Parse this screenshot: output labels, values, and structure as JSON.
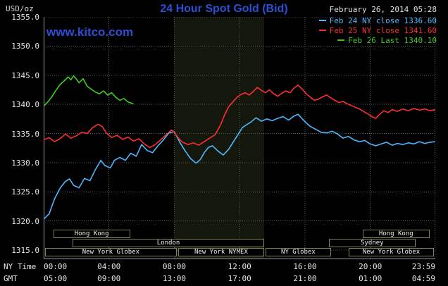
{
  "header": {
    "unit_label": "USD/oz",
    "title": "24 Hour Spot Gold (Bid)",
    "datetime": "February 26, 2014 05:28",
    "watermark": "www.kitco.com"
  },
  "colors": {
    "background": "#000000",
    "title_blue": "#2c4fd4",
    "grid": "#5c5c5c",
    "axis_line": "#9a9a9a",
    "axis_text": "#e4e4e4",
    "session_border": "#82825a",
    "band": "#14170c",
    "cyan": "#4db8ff",
    "red": "#ff2e2e",
    "green": "#3fcc1f"
  },
  "legend": [
    {
      "label": "Feb 24 NY close 1336.60",
      "color_key": "cyan"
    },
    {
      "label": "Feb 25 NY close 1341.60",
      "color_key": "red"
    },
    {
      "label": "Feb 26 Last 1340.10",
      "color_key": "green"
    }
  ],
  "axes": {
    "y_tick_labels": [
      "1355.0",
      "1350.0",
      "1345.0",
      "1340.0",
      "1335.0",
      "1330.0",
      "1325.0",
      "1320.0",
      "1315.0"
    ],
    "x_row1_label": "NY Time",
    "x_row2_label": "GMT",
    "x_ticks": [
      {
        "min": 0,
        "ny": "00:00",
        "gmt": "05:00"
      },
      {
        "min": 240,
        "ny": "04:00",
        "gmt": "09:00"
      },
      {
        "min": 480,
        "ny": "08:00",
        "gmt": "13:00"
      },
      {
        "min": 720,
        "ny": "12:00",
        "gmt": "17:00"
      },
      {
        "min": 960,
        "ny": "16:00",
        "gmt": "21:00"
      },
      {
        "min": 1200,
        "ny": "20:00",
        "gmt": "01:00"
      },
      {
        "min": 1439,
        "ny": "23:59",
        "gmt": "04:59"
      }
    ]
  },
  "sessions": [
    {
      "row": 0,
      "start_min": 35,
      "end_min": 318,
      "label": "Hong Kong"
    },
    {
      "row": 0,
      "start_min": 1172,
      "end_min": 1418,
      "label": "Hong Kong"
    },
    {
      "row": 1,
      "start_min": 106,
      "end_min": 810,
      "label": "London"
    },
    {
      "row": 1,
      "start_min": 1048,
      "end_min": 1366,
      "label": "Sydney"
    },
    {
      "row": 2,
      "start_min": 5,
      "end_min": 489,
      "label": "New York Globex"
    },
    {
      "row": 2,
      "start_min": 494,
      "end_min": 810,
      "label": "New York NYMEX"
    },
    {
      "row": 2,
      "start_min": 815,
      "end_min": 1056,
      "label": "NY Globex"
    },
    {
      "row": 2,
      "start_min": 1121,
      "end_min": 1434,
      "label": "New York Globex"
    }
  ],
  "chart_data": {
    "type": "line",
    "title": "24 Hour Spot Gold (Bid)",
    "ylabel": "USD/oz",
    "x_unit": "minutes_since_00:00_NY_time",
    "xlim": [
      0,
      1439
    ],
    "ylim": [
      1315,
      1355
    ],
    "y_gridline_step": 5,
    "grid": true,
    "legend_position": "top-right",
    "highlight_band_min": [
      480,
      810
    ],
    "series": [
      {
        "name": "Feb 24 NY close 1336.60",
        "color_key": "cyan",
        "points": [
          [
            0,
            1320.3
          ],
          [
            20,
            1321.2
          ],
          [
            40,
            1323.8
          ],
          [
            60,
            1325.6
          ],
          [
            80,
            1326.8
          ],
          [
            95,
            1327.2
          ],
          [
            110,
            1326.1
          ],
          [
            130,
            1325.7
          ],
          [
            150,
            1327.3
          ],
          [
            170,
            1326.9
          ],
          [
            190,
            1328.8
          ],
          [
            210,
            1330.4
          ],
          [
            225,
            1329.5
          ],
          [
            245,
            1329.1
          ],
          [
            260,
            1330.4
          ],
          [
            280,
            1330.9
          ],
          [
            300,
            1330.4
          ],
          [
            320,
            1331.6
          ],
          [
            340,
            1331.1
          ],
          [
            360,
            1333.1
          ],
          [
            380,
            1332.1
          ],
          [
            400,
            1331.7
          ],
          [
            420,
            1332.9
          ],
          [
            440,
            1333.9
          ],
          [
            460,
            1335.1
          ],
          [
            480,
            1335.3
          ],
          [
            500,
            1333.5
          ],
          [
            520,
            1332.0
          ],
          [
            540,
            1330.7
          ],
          [
            560,
            1329.9
          ],
          [
            575,
            1330.5
          ],
          [
            590,
            1331.7
          ],
          [
            605,
            1332.6
          ],
          [
            620,
            1332.9
          ],
          [
            640,
            1332.0
          ],
          [
            660,
            1331.3
          ],
          [
            680,
            1332.3
          ],
          [
            700,
            1333.8
          ],
          [
            715,
            1334.9
          ],
          [
            730,
            1336.0
          ],
          [
            745,
            1336.5
          ],
          [
            760,
            1336.9
          ],
          [
            780,
            1337.7
          ],
          [
            800,
            1337.1
          ],
          [
            820,
            1337.5
          ],
          [
            840,
            1337.2
          ],
          [
            860,
            1337.6
          ],
          [
            880,
            1337.9
          ],
          [
            900,
            1337.3
          ],
          [
            920,
            1338.0
          ],
          [
            935,
            1338.3
          ],
          [
            950,
            1337.5
          ],
          [
            965,
            1336.8
          ],
          [
            980,
            1336.2
          ],
          [
            1000,
            1335.7
          ],
          [
            1020,
            1335.2
          ],
          [
            1040,
            1335.1
          ],
          [
            1060,
            1335.4
          ],
          [
            1080,
            1334.9
          ],
          [
            1100,
            1334.2
          ],
          [
            1120,
            1334.5
          ],
          [
            1140,
            1333.9
          ],
          [
            1160,
            1333.6
          ],
          [
            1180,
            1333.8
          ],
          [
            1200,
            1333.2
          ],
          [
            1220,
            1332.9
          ],
          [
            1240,
            1333.2
          ],
          [
            1260,
            1333.5
          ],
          [
            1280,
            1333.0
          ],
          [
            1300,
            1333.3
          ],
          [
            1320,
            1333.1
          ],
          [
            1340,
            1333.4
          ],
          [
            1360,
            1333.2
          ],
          [
            1380,
            1333.6
          ],
          [
            1400,
            1333.3
          ],
          [
            1420,
            1333.5
          ],
          [
            1439,
            1333.6
          ]
        ]
      },
      {
        "name": "Feb 25 NY close 1341.60",
        "color_key": "red",
        "points": [
          [
            0,
            1333.9
          ],
          [
            20,
            1334.3
          ],
          [
            40,
            1333.6
          ],
          [
            60,
            1334.1
          ],
          [
            80,
            1334.9
          ],
          [
            100,
            1334.2
          ],
          [
            120,
            1334.6
          ],
          [
            140,
            1335.2
          ],
          [
            160,
            1335.0
          ],
          [
            180,
            1336.0
          ],
          [
            200,
            1336.6
          ],
          [
            215,
            1336.2
          ],
          [
            230,
            1335.1
          ],
          [
            250,
            1334.3
          ],
          [
            270,
            1334.7
          ],
          [
            290,
            1334.0
          ],
          [
            310,
            1334.4
          ],
          [
            330,
            1333.7
          ],
          [
            350,
            1334.1
          ],
          [
            370,
            1333.2
          ],
          [
            390,
            1332.6
          ],
          [
            410,
            1333.1
          ],
          [
            430,
            1333.9
          ],
          [
            450,
            1334.8
          ],
          [
            470,
            1335.6
          ],
          [
            480,
            1335.2
          ],
          [
            495,
            1334.2
          ],
          [
            510,
            1333.5
          ],
          [
            530,
            1333.1
          ],
          [
            550,
            1333.4
          ],
          [
            570,
            1333.0
          ],
          [
            590,
            1333.6
          ],
          [
            610,
            1334.2
          ],
          [
            630,
            1334.8
          ],
          [
            650,
            1336.5
          ],
          [
            665,
            1338.2
          ],
          [
            680,
            1339.6
          ],
          [
            695,
            1340.4
          ],
          [
            710,
            1341.2
          ],
          [
            725,
            1341.7
          ],
          [
            740,
            1342.0
          ],
          [
            755,
            1341.6
          ],
          [
            770,
            1342.2
          ],
          [
            785,
            1342.9
          ],
          [
            800,
            1342.4
          ],
          [
            815,
            1342.0
          ],
          [
            830,
            1342.5
          ],
          [
            845,
            1341.8
          ],
          [
            860,
            1341.4
          ],
          [
            875,
            1341.9
          ],
          [
            890,
            1342.3
          ],
          [
            905,
            1342.0
          ],
          [
            920,
            1342.8
          ],
          [
            935,
            1343.3
          ],
          [
            950,
            1342.6
          ],
          [
            965,
            1341.8
          ],
          [
            980,
            1341.2
          ],
          [
            995,
            1340.7
          ],
          [
            1010,
            1340.9
          ],
          [
            1025,
            1341.3
          ],
          [
            1040,
            1341.6
          ],
          [
            1055,
            1341.1
          ],
          [
            1070,
            1340.7
          ],
          [
            1085,
            1340.3
          ],
          [
            1100,
            1340.5
          ],
          [
            1115,
            1340.1
          ],
          [
            1130,
            1339.8
          ],
          [
            1145,
            1339.5
          ],
          [
            1160,
            1339.2
          ],
          [
            1175,
            1338.8
          ],
          [
            1190,
            1338.4
          ],
          [
            1205,
            1337.9
          ],
          [
            1220,
            1337.6
          ],
          [
            1235,
            1338.3
          ],
          [
            1250,
            1338.9
          ],
          [
            1265,
            1338.6
          ],
          [
            1280,
            1339.1
          ],
          [
            1300,
            1338.8
          ],
          [
            1320,
            1339.2
          ],
          [
            1340,
            1338.9
          ],
          [
            1360,
            1339.3
          ],
          [
            1380,
            1339.0
          ],
          [
            1400,
            1339.2
          ],
          [
            1420,
            1338.9
          ],
          [
            1439,
            1339.1
          ]
        ]
      },
      {
        "name": "Feb 26 Last 1340.10",
        "color_key": "green",
        "points": [
          [
            0,
            1339.7
          ],
          [
            15,
            1340.4
          ],
          [
            30,
            1341.3
          ],
          [
            45,
            1342.4
          ],
          [
            60,
            1343.4
          ],
          [
            75,
            1344.0
          ],
          [
            90,
            1344.7
          ],
          [
            100,
            1344.2
          ],
          [
            110,
            1344.9
          ],
          [
            120,
            1344.3
          ],
          [
            130,
            1343.7
          ],
          [
            145,
            1344.4
          ],
          [
            160,
            1343.1
          ],
          [
            175,
            1342.6
          ],
          [
            190,
            1342.1
          ],
          [
            205,
            1341.8
          ],
          [
            220,
            1342.3
          ],
          [
            235,
            1341.6
          ],
          [
            250,
            1342.0
          ],
          [
            265,
            1341.2
          ],
          [
            280,
            1340.7
          ],
          [
            295,
            1341.0
          ],
          [
            310,
            1340.4
          ],
          [
            328,
            1340.1
          ]
        ]
      }
    ]
  }
}
